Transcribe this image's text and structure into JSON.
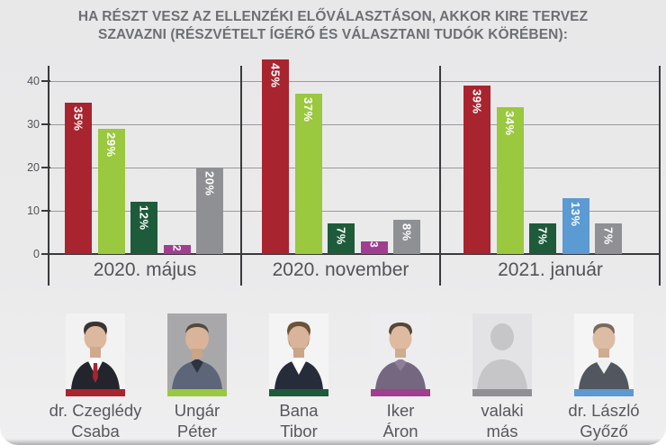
{
  "title": {
    "lines": [
      "HA RÉSZT VESZ AZ ELLENZÉKI ELŐVÁLASZTÁSON, AKKOR KIRE TERVEZ",
      "SZAVAZNI (RÉSZVÉTELT ÍGÉRŐ ÉS VÁLASZTANI TUDÓK KÖRÉBEN):"
    ],
    "full": "HA RÉSZT VESZ AZ ELLENZÉKI ELŐVÁLASZTÁSON, AKKOR KIRE TERVEZ SZAVAZNI (RÉSZVÉTELT ÍGÉRŐ ÉS VÁLASZTANI TUDÓK KÖRÉBEN):"
  },
  "chart_data": {
    "type": "bar",
    "title": "HA RÉSZT VESZ AZ ELLENZÉKI ELŐVÁLASZTÁSON, AKKOR KIRE TERVEZ SZAVAZNI (RÉSZVÉTELT ÍGÉRŐ ÉS VÁLASZTANI TUDÓK KÖRÉBEN):",
    "categories": [
      "2020. május",
      "2020. november",
      "2021. január"
    ],
    "yticks": [
      0,
      10,
      20,
      30,
      40
    ],
    "ylim": [
      0,
      47
    ],
    "grid": true,
    "series": [
      {
        "name": "dr. Czeglédy Csaba",
        "color": "#a8242f",
        "values": [
          35,
          45,
          39
        ]
      },
      {
        "name": "Ungár Péter",
        "color": "#9ac83e",
        "values": [
          29,
          37,
          34
        ]
      },
      {
        "name": "Bana Tibor",
        "color": "#1e5b3b",
        "values": [
          12,
          7,
          7
        ]
      },
      {
        "name": "Iker Áron",
        "color": "#a03e8f",
        "values": [
          2,
          3,
          null
        ]
      },
      {
        "name": "dr. László Győző",
        "color": "#5b9ad2",
        "values": [
          null,
          null,
          13
        ]
      },
      {
        "name": "valaki más",
        "color": "#8e9094",
        "values": [
          20,
          8,
          7
        ]
      }
    ],
    "groups": [
      {
        "label": "2020. május",
        "bars": [
          {
            "series": "dr. Czeglédy Csaba",
            "value": 35,
            "label": "35%",
            "color": "#a8242f"
          },
          {
            "series": "Ungár Péter",
            "value": 29,
            "label": "29%",
            "color": "#9ac83e"
          },
          {
            "series": "Bana Tibor",
            "value": 12,
            "label": "12%",
            "color": "#1e5b3b"
          },
          {
            "series": "Iker Áron",
            "value": 2,
            "label": "2",
            "color": "#a03e8f"
          },
          {
            "series": "valaki más",
            "value": 20,
            "label": "20%",
            "color": "#8e9094"
          }
        ]
      },
      {
        "label": "2020. november",
        "bars": [
          {
            "series": "dr. Czeglédy Csaba",
            "value": 45,
            "label": "45%",
            "color": "#a8242f"
          },
          {
            "series": "Ungár Péter",
            "value": 37,
            "label": "37%",
            "color": "#9ac83e"
          },
          {
            "series": "Bana Tibor",
            "value": 7,
            "label": "7%",
            "color": "#1e5b3b"
          },
          {
            "series": "Iker Áron",
            "value": 3,
            "label": "3",
            "color": "#a03e8f"
          },
          {
            "series": "valaki más",
            "value": 8,
            "label": "8%",
            "color": "#8e9094"
          }
        ]
      },
      {
        "label": "2021. január",
        "bars": [
          {
            "series": "dr. Czeglédy Csaba",
            "value": 39,
            "label": "39%",
            "color": "#a8242f"
          },
          {
            "series": "Ungár Péter",
            "value": 34,
            "label": "34%",
            "color": "#9ac83e"
          },
          {
            "series": "Bana Tibor",
            "value": 7,
            "label": "7%",
            "color": "#1e5b3b"
          },
          {
            "series": "dr. László Győző",
            "value": 13,
            "label": "13%",
            "color": "#5b9ad2"
          },
          {
            "series": "valaki más",
            "value": 7,
            "label": "7%",
            "color": "#8e9094"
          }
        ]
      }
    ]
  },
  "people": [
    {
      "line1": "dr. Czeglédy",
      "line2": "Csaba",
      "color": "#a8242f"
    },
    {
      "line1": "Ungár",
      "line2": "Péter",
      "color": "#9ac83e"
    },
    {
      "line1": "Bana",
      "line2": "Tibor",
      "color": "#1e5b3b"
    },
    {
      "line1": "Iker",
      "line2": "Áron",
      "color": "#a03e8f"
    },
    {
      "line1": "valaki",
      "line2": "más",
      "color": "#8e9094"
    },
    {
      "line1": "dr. László",
      "line2": "Győző",
      "color": "#5b9ad2"
    }
  ],
  "colors": {
    "background": "#e9e9ea",
    "grid": "#9b9b9e",
    "axis": "#3a3a3d",
    "text": "#515356",
    "title": "#6d6f73",
    "bar_label": "#ffffff"
  }
}
